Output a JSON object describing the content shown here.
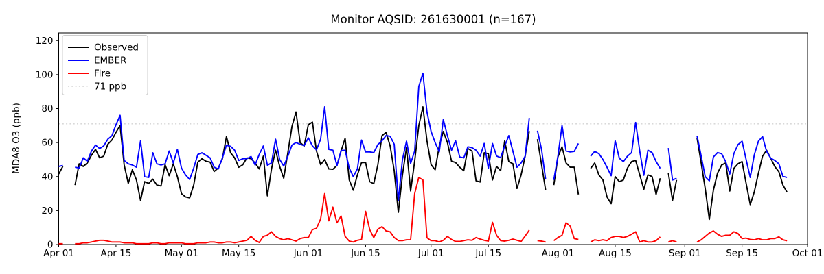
{
  "title": "Monitor AQSID: 261630001 (n=167)",
  "y_axis": {
    "label": "MDA8 O3 (ppb)",
    "ticks": [
      0,
      20,
      40,
      60,
      80,
      100,
      120
    ]
  },
  "x_axis": {
    "ticks": [
      {
        "day": 0,
        "label": "Apr 01"
      },
      {
        "day": 14,
        "label": "Apr 15"
      },
      {
        "day": 30,
        "label": "May 01"
      },
      {
        "day": 44,
        "label": "May 15"
      },
      {
        "day": 61,
        "label": "Jun 01"
      },
      {
        "day": 75,
        "label": "Jun 15"
      },
      {
        "day": 91,
        "label": "Jul 01"
      },
      {
        "day": 105,
        "label": "Jul 15"
      },
      {
        "day": 122,
        "label": "Aug 01"
      },
      {
        "day": 136,
        "label": "Aug 15"
      },
      {
        "day": 153,
        "label": "Sep 01"
      },
      {
        "day": 167,
        "label": "Sep 15"
      },
      {
        "day": 183,
        "label": "Oct 01"
      }
    ]
  },
  "legend": {
    "items": [
      {
        "label": "Observed",
        "color": "#000000",
        "style": "solid"
      },
      {
        "label": "EMBER",
        "color": "#0000ff",
        "style": "solid"
      },
      {
        "label": "Fire",
        "color": "#ff0000",
        "style": "solid"
      },
      {
        "label": "71 ppb",
        "color": "#d3d3d3",
        "style": "dotted"
      }
    ]
  },
  "threshold": {
    "value": 71,
    "label": "71 ppb",
    "color": "#d3d3d3"
  },
  "chart_data": {
    "type": "line",
    "title": "Monitor AQSID: 261630001 (n=167)",
    "xlabel": "",
    "ylabel": "MDA8 O3 (ppb)",
    "x_unit": "days since Apr 01",
    "x_range_days": 183,
    "ylim": [
      0,
      124.4
    ],
    "grid": false,
    "legend_position": "upper left",
    "series": [
      {
        "name": "Observed",
        "color": "#000000",
        "values": [
          41.5,
          46,
          null,
          null,
          35,
          47.5,
          46,
          48,
          52.5,
          56,
          51,
          52,
          59,
          61.5,
          66,
          70,
          47,
          36,
          44,
          38,
          26,
          37,
          36,
          38.5,
          35,
          34.5,
          47,
          40.5,
          47.5,
          40,
          30,
          28,
          27.5,
          35,
          48.5,
          50.5,
          49,
          48.5,
          43,
          45,
          50.5,
          63.5,
          54,
          51,
          45.5,
          47,
          51,
          50.5,
          48,
          44.5,
          52,
          28.7,
          44.5,
          55.5,
          46,
          39,
          54,
          69.5,
          78,
          60,
          58,
          70.5,
          72,
          55,
          47,
          50,
          44.5,
          44.3,
          46.5,
          55,
          62.5,
          38,
          32,
          41,
          48.2,
          48.3,
          37,
          35.8,
          47,
          64,
          66,
          58,
          43.5,
          19,
          41,
          57,
          31.5,
          49,
          70,
          81,
          61,
          47,
          44,
          58,
          66.5,
          60,
          49,
          48.3,
          45.5,
          43.5,
          56.5,
          55,
          37.5,
          36.8,
          54,
          53.5,
          38,
          46,
          43.5,
          61,
          48.8,
          47.5,
          33,
          41,
          52,
          66.8,
          null,
          62,
          47,
          32,
          null,
          35,
          51.5,
          57.5,
          48,
          45.5,
          45.5,
          29.5,
          null,
          null,
          44.8,
          48,
          41,
          38,
          28,
          24,
          40,
          37,
          38,
          45,
          48.8,
          49.5,
          41,
          32.5,
          41,
          40,
          29.5,
          39,
          null,
          42,
          26,
          38,
          null,
          null,
          null,
          null,
          62.8,
          48,
          33,
          14.8,
          32,
          42,
          46.8,
          48,
          31.5,
          44.8,
          47.5,
          48.8,
          36,
          23.5,
          31,
          42,
          52,
          55.5,
          50.8,
          46,
          42.8,
          35,
          30.8,
          null,
          null,
          null,
          null
        ]
      },
      {
        "name": "EMBER",
        "color": "#0000ff",
        "values": [
          46,
          46.5,
          null,
          null,
          45.5,
          45,
          51,
          49,
          55,
          58.5,
          56.5,
          58,
          62,
          64,
          70.5,
          76,
          49.5,
          47.5,
          46.8,
          45.5,
          61,
          40,
          39.5,
          54,
          47.5,
          46.8,
          47.5,
          55,
          48,
          56,
          45,
          41,
          38.3,
          45,
          53,
          54,
          52.5,
          51,
          45.5,
          44.5,
          51,
          58.5,
          57.8,
          55.5,
          49.5,
          50.5,
          50.5,
          51.8,
          46.8,
          53,
          58,
          46.7,
          48,
          62,
          50,
          46.2,
          52,
          58.5,
          60,
          59,
          58.2,
          62.8,
          58,
          55.7,
          62,
          81,
          56,
          55.5,
          46.5,
          55.3,
          55.5,
          45,
          40,
          44.5,
          61.5,
          54.5,
          54.5,
          54.1,
          58.8,
          61,
          64.1,
          63.7,
          59,
          26,
          50,
          60.8,
          47.7,
          55,
          93,
          100.8,
          78,
          66.5,
          60,
          54.5,
          73.5,
          64,
          55.5,
          61,
          51.5,
          51,
          57.5,
          57,
          55.5,
          52,
          59.5,
          44.8,
          59.5,
          52.1,
          51.1,
          58,
          64.1,
          54.8,
          45.5,
          48,
          52,
          74.5,
          null,
          67,
          56,
          38.3,
          null,
          38,
          52,
          70,
          55,
          54.5,
          54.8,
          59.5,
          null,
          null,
          52,
          54.8,
          53.5,
          50,
          45.5,
          40.5,
          61,
          50.8,
          48.8,
          52,
          54.1,
          71.8,
          54.8,
          40.8,
          55.5,
          54.1,
          48.8,
          44.8,
          null,
          56.8,
          38,
          39,
          null,
          null,
          null,
          null,
          64,
          52.1,
          40,
          37.5,
          51.5,
          54.1,
          53.5,
          48.8,
          41.5,
          53.5,
          58.8,
          60.8,
          50,
          39.5,
          52.8,
          60.8,
          63.5,
          54.8,
          50.8,
          49.5,
          47.5,
          40.1,
          39.5,
          null,
          null,
          null,
          null
        ]
      },
      {
        "name": "Fire",
        "color": "#ff0000",
        "values": [
          0.5,
          0.5,
          null,
          null,
          0.5,
          0.5,
          1,
          1,
          1.5,
          2,
          2.5,
          2.5,
          2,
          1.5,
          1.5,
          1.5,
          1,
          1,
          1,
          0.5,
          0.5,
          0.5,
          0.5,
          1,
          1,
          0.5,
          0.5,
          1,
          1,
          1,
          1,
          0.5,
          0.5,
          0.5,
          1,
          1,
          1,
          1.5,
          1.5,
          1,
          1,
          1.5,
          1.5,
          1,
          1.5,
          2,
          2.5,
          4.8,
          2.5,
          1.2,
          4.8,
          5.5,
          7.5,
          4.8,
          3.5,
          2.8,
          3.5,
          2.8,
          2,
          3.5,
          4.1,
          4.1,
          8.8,
          9.5,
          15,
          30,
          14,
          22,
          12.8,
          16.8,
          4.8,
          2,
          1.5,
          2.5,
          3,
          19.5,
          8.8,
          4.1,
          9,
          10.5,
          8,
          7.5,
          4.1,
          2.3,
          2.3,
          2.8,
          2.8,
          30,
          39.5,
          38,
          4,
          2.3,
          2.3,
          1.5,
          2.5,
          4.8,
          3,
          1.8,
          1.8,
          2.3,
          2.8,
          2.5,
          4.1,
          3.2,
          2.5,
          2,
          13.1,
          5.5,
          2.3,
          2,
          2.5,
          3.2,
          2.5,
          1.8,
          5,
          8.5,
          null,
          2.3,
          2,
          1.5,
          null,
          2.3,
          4.1,
          5.5,
          12.8,
          10.8,
          3.5,
          3,
          null,
          null,
          1.5,
          2.8,
          2.3,
          2.8,
          2.3,
          4.1,
          4.8,
          4.8,
          4.1,
          4.8,
          6.1,
          7.5,
          1.5,
          2.3,
          1.5,
          1.5,
          2.3,
          4.5,
          null,
          1.5,
          2.3,
          1.5,
          null,
          null,
          null,
          null,
          1.5,
          2.8,
          4.8,
          6.8,
          8,
          6.1,
          4.8,
          5.5,
          5.5,
          7.5,
          6.5,
          3.5,
          3.8,
          3,
          2.8,
          3.5,
          2.8,
          2.8,
          3.5,
          3.5,
          4.5,
          2.8,
          2.2,
          null,
          null,
          null,
          null
        ]
      }
    ],
    "annotations": [
      {
        "type": "hline",
        "y": 71,
        "label": "71 ppb",
        "style": "dotted",
        "color": "#d3d3d3"
      }
    ]
  }
}
